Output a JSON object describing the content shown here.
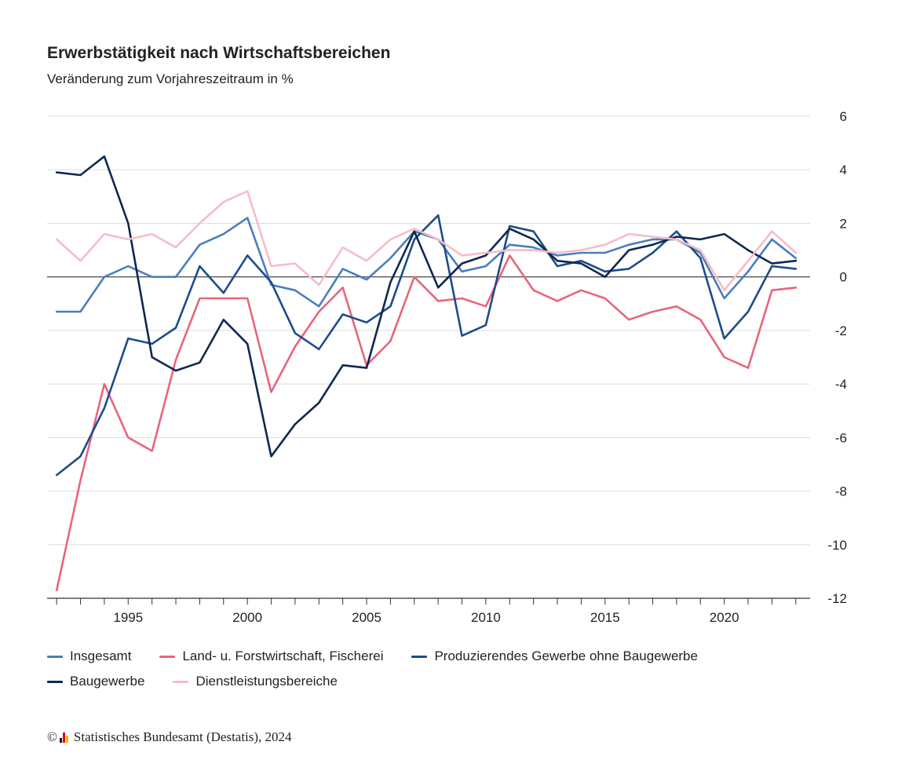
{
  "header": {
    "title": "Erwerbstätigkeit nach Wirtschaftsbereichen",
    "subtitle": "Veränderung zum Vorjahreszeitraum in %"
  },
  "footer": {
    "copyright_symbol": "©",
    "source": "Statistisches Bundesamt (Destatis), 2024",
    "logo_colors": [
      "#1a1a1a",
      "#e30613",
      "#f5b800"
    ]
  },
  "legend": {
    "rows": [
      [
        0,
        1,
        2
      ],
      [
        3,
        4
      ]
    ]
  },
  "chart_data": {
    "type": "line",
    "title": "Erwerbstätigkeit nach Wirtschaftsbereichen",
    "subtitle": "Veränderung zum Vorjahreszeitraum in %",
    "xlabel": "",
    "ylabel": "",
    "x": [
      1992,
      1993,
      1994,
      1995,
      1996,
      1997,
      1998,
      1999,
      2000,
      2001,
      2002,
      2003,
      2004,
      2005,
      2006,
      2007,
      2008,
      2009,
      2010,
      2011,
      2012,
      2013,
      2014,
      2015,
      2016,
      2017,
      2018,
      2019,
      2020,
      2021,
      2022,
      2023
    ],
    "x_ticks": [
      1995,
      2000,
      2005,
      2010,
      2015,
      2020
    ],
    "xlim": [
      1991.6,
      2023.6
    ],
    "ylim": [
      -12,
      6
    ],
    "y_ticks": [
      6,
      4,
      2,
      0,
      -2,
      -4,
      -6,
      -8,
      -10,
      -12
    ],
    "y_axis_position": "right",
    "grid": true,
    "legend_position": "bottom",
    "series": [
      {
        "name": "Insgesamt",
        "color": "#4a7ebf",
        "values": [
          -1.3,
          -1.3,
          0.0,
          0.4,
          0.0,
          0.0,
          1.2,
          1.6,
          2.2,
          -0.3,
          -0.5,
          -1.1,
          0.3,
          -0.1,
          0.7,
          1.7,
          1.4,
          0.2,
          0.4,
          1.2,
          1.1,
          0.8,
          0.9,
          0.9,
          1.2,
          1.4,
          1.4,
          0.9,
          -0.8,
          0.2,
          1.4,
          0.7
        ]
      },
      {
        "name": "Land- u. Forstwirtschaft, Fischerei",
        "color": "#e8657c",
        "values": [
          -11.7,
          -7.6,
          -4.0,
          -6.0,
          -6.5,
          -3.1,
          -0.8,
          -0.8,
          -0.8,
          -4.3,
          -2.6,
          -1.3,
          -0.4,
          -3.3,
          -2.4,
          0.0,
          -0.9,
          -0.8,
          -1.1,
          0.8,
          -0.5,
          -0.9,
          -0.5,
          -0.8,
          -1.6,
          -1.3,
          -1.1,
          -1.6,
          -3.0,
          -3.4,
          -0.5,
          -0.4
        ]
      },
      {
        "name": "Produzierendes Gewerbe ohne Baugewerbe",
        "color": "#1e4c8a",
        "values": [
          -7.4,
          -6.7,
          -4.9,
          -2.3,
          -2.5,
          -1.9,
          0.4,
          -0.6,
          0.8,
          -0.2,
          -2.1,
          -2.7,
          -1.4,
          -1.7,
          -1.1,
          1.4,
          2.3,
          -2.2,
          -1.8,
          1.9,
          1.7,
          0.4,
          0.6,
          0.2,
          0.3,
          0.9,
          1.7,
          0.7,
          -2.3,
          -1.3,
          0.4,
          0.3
        ]
      },
      {
        "name": "Baugewerbe",
        "color": "#0e2851",
        "values": [
          3.9,
          3.8,
          4.5,
          2.0,
          -3.0,
          -3.5,
          -3.2,
          -1.6,
          -2.5,
          -6.7,
          -5.5,
          -4.7,
          -3.3,
          -3.4,
          -0.2,
          1.7,
          -0.4,
          0.5,
          0.8,
          1.8,
          1.4,
          0.6,
          0.5,
          0.0,
          1.0,
          1.2,
          1.5,
          1.4,
          1.6,
          1.0,
          0.5,
          0.6
        ]
      },
      {
        "name": "Dienstleistungsbereiche",
        "color": "#f7bcc6",
        "values": [
          1.4,
          0.6,
          1.6,
          1.4,
          1.6,
          1.1,
          2.0,
          2.8,
          3.2,
          0.4,
          0.5,
          -0.3,
          1.1,
          0.6,
          1.4,
          1.8,
          1.4,
          0.8,
          0.9,
          1.0,
          1.0,
          0.9,
          1.0,
          1.2,
          1.6,
          1.5,
          1.4,
          1.0,
          -0.5,
          0.6,
          1.7,
          0.9
        ]
      }
    ]
  }
}
